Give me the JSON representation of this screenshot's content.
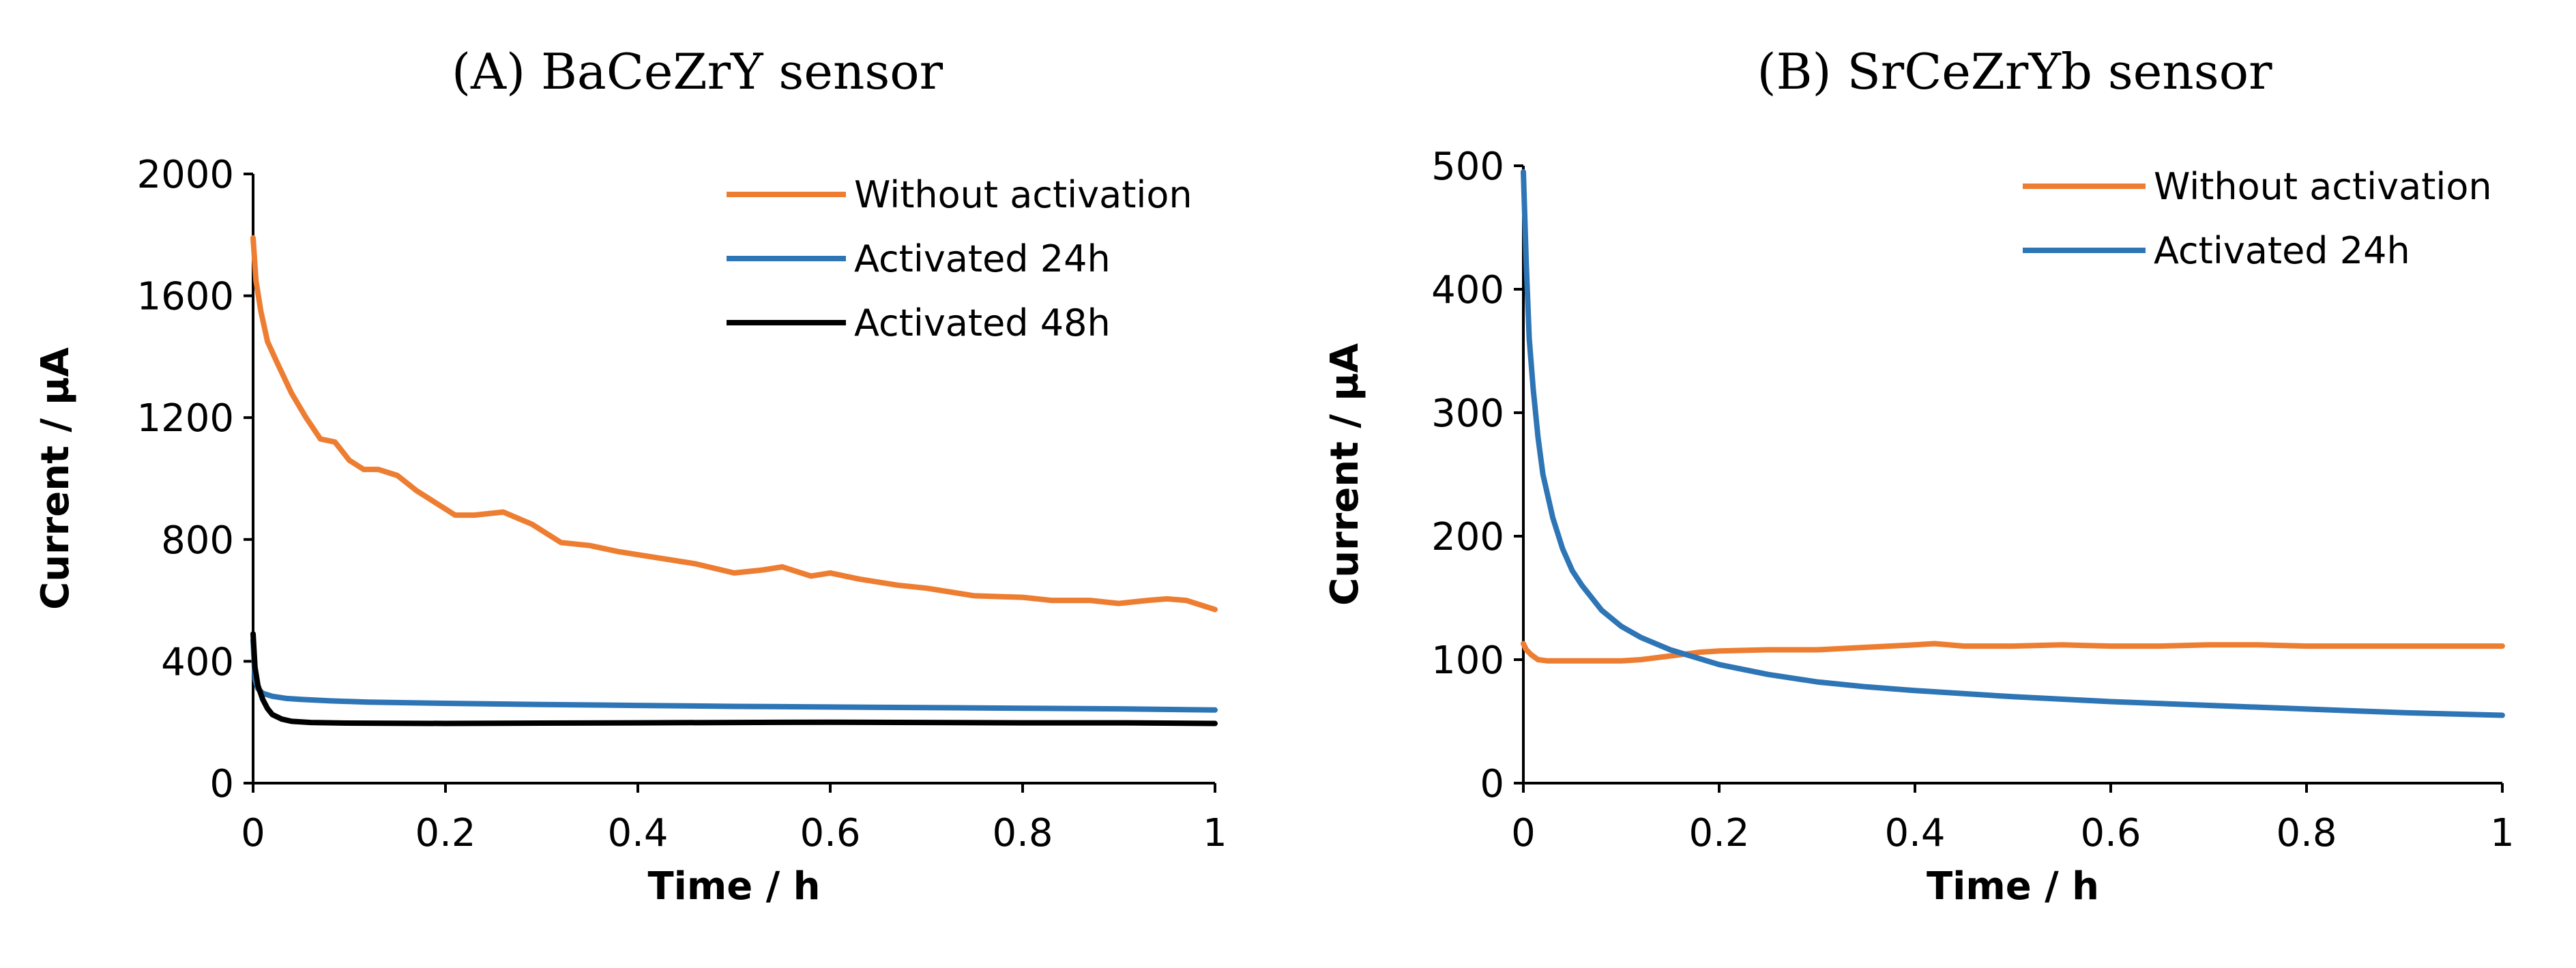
{
  "chart_data": [
    {
      "type": "line",
      "title": "(A) BaCeZrY sensor",
      "xlabel": "Time / h",
      "ylabel": "Current / µA",
      "xlim": [
        0,
        1
      ],
      "ylim": [
        0,
        2000
      ],
      "xticks": [
        0,
        0.2,
        0.4,
        0.6,
        0.8,
        1
      ],
      "xtick_labels": [
        "0",
        "0.2",
        "0.4",
        "0.6",
        "0.8",
        "1"
      ],
      "yticks": [
        0,
        400,
        800,
        1200,
        1600,
        2000
      ],
      "ytick_labels": [
        "0",
        "400",
        "800",
        "1200",
        "1600",
        "2000"
      ],
      "grid": false,
      "legend_position": "top-right",
      "series": [
        {
          "name": "Without activation",
          "color": "#ED7D31",
          "x": [
            0,
            0.003,
            0.008,
            0.015,
            0.025,
            0.04,
            0.055,
            0.07,
            0.085,
            0.1,
            0.115,
            0.13,
            0.15,
            0.17,
            0.19,
            0.21,
            0.23,
            0.26,
            0.29,
            0.32,
            0.35,
            0.38,
            0.42,
            0.46,
            0.5,
            0.53,
            0.55,
            0.58,
            0.6,
            0.63,
            0.67,
            0.7,
            0.75,
            0.8,
            0.83,
            0.87,
            0.9,
            0.93,
            0.95,
            0.97,
            1.0
          ],
          "y": [
            1790,
            1650,
            1550,
            1450,
            1380,
            1280,
            1200,
            1130,
            1120,
            1060,
            1030,
            1030,
            1010,
            960,
            920,
            880,
            880,
            890,
            850,
            790,
            780,
            760,
            740,
            720,
            690,
            700,
            710,
            680,
            690,
            670,
            650,
            640,
            615,
            610,
            600,
            600,
            590,
            600,
            605,
            600,
            570
          ]
        },
        {
          "name": "Activated 24h",
          "color": "#2E75B6",
          "x": [
            0,
            0.002,
            0.005,
            0.01,
            0.02,
            0.035,
            0.05,
            0.08,
            0.12,
            0.2,
            0.3,
            0.4,
            0.5,
            0.6,
            0.7,
            0.8,
            0.9,
            1.0
          ],
          "y": [
            470,
            340,
            310,
            295,
            285,
            278,
            275,
            270,
            266,
            262,
            258,
            255,
            252,
            250,
            248,
            246,
            244,
            240
          ]
        },
        {
          "name": "Activated 48h",
          "color": "#000000",
          "x": [
            0,
            0.002,
            0.005,
            0.01,
            0.015,
            0.02,
            0.03,
            0.04,
            0.06,
            0.1,
            0.2,
            0.3,
            0.4,
            0.5,
            0.6,
            0.7,
            0.8,
            0.9,
            1.0
          ],
          "y": [
            490,
            380,
            320,
            275,
            245,
            225,
            210,
            203,
            199,
            197,
            196,
            197,
            198,
            199,
            200,
            199,
            198,
            198,
            196
          ]
        }
      ]
    },
    {
      "type": "line",
      "title": "(B) SrCeZrYb sensor",
      "xlabel": "Time / h",
      "ylabel": "Current / µA",
      "xlim": [
        0,
        1
      ],
      "ylim": [
        0,
        500
      ],
      "xticks": [
        0,
        0.2,
        0.4,
        0.6,
        0.8,
        1
      ],
      "xtick_labels": [
        "0",
        "0.2",
        "0.4",
        "0.6",
        "0.8",
        "1"
      ],
      "yticks": [
        0,
        100,
        200,
        300,
        400,
        500
      ],
      "ytick_labels": [
        "0",
        "100",
        "200",
        "300",
        "400",
        "500"
      ],
      "grid": false,
      "legend_position": "top-right",
      "series": [
        {
          "name": "Without activation",
          "color": "#ED7D31",
          "x": [
            0,
            0.003,
            0.008,
            0.015,
            0.025,
            0.04,
            0.06,
            0.08,
            0.1,
            0.12,
            0.14,
            0.16,
            0.18,
            0.2,
            0.25,
            0.3,
            0.35,
            0.4,
            0.42,
            0.45,
            0.5,
            0.55,
            0.6,
            0.65,
            0.7,
            0.75,
            0.8,
            0.9,
            1.0
          ],
          "y": [
            113,
            108,
            104,
            100,
            99,
            99,
            99,
            99,
            99,
            100,
            102,
            104,
            106,
            107,
            108,
            108,
            110,
            112,
            113,
            111,
            111,
            112,
            111,
            111,
            112,
            112,
            111,
            111,
            111
          ]
        },
        {
          "name": "Activated 24h",
          "color": "#2E75B6",
          "x": [
            0,
            0.003,
            0.006,
            0.01,
            0.015,
            0.02,
            0.03,
            0.04,
            0.05,
            0.06,
            0.08,
            0.1,
            0.12,
            0.15,
            0.2,
            0.25,
            0.3,
            0.35,
            0.4,
            0.5,
            0.6,
            0.7,
            0.8,
            0.9,
            1.0
          ],
          "y": [
            495,
            420,
            360,
            320,
            280,
            250,
            215,
            190,
            172,
            160,
            140,
            127,
            118,
            108,
            96,
            88,
            82,
            78,
            75,
            70,
            66,
            63,
            60,
            57,
            55
          ]
        }
      ]
    }
  ]
}
